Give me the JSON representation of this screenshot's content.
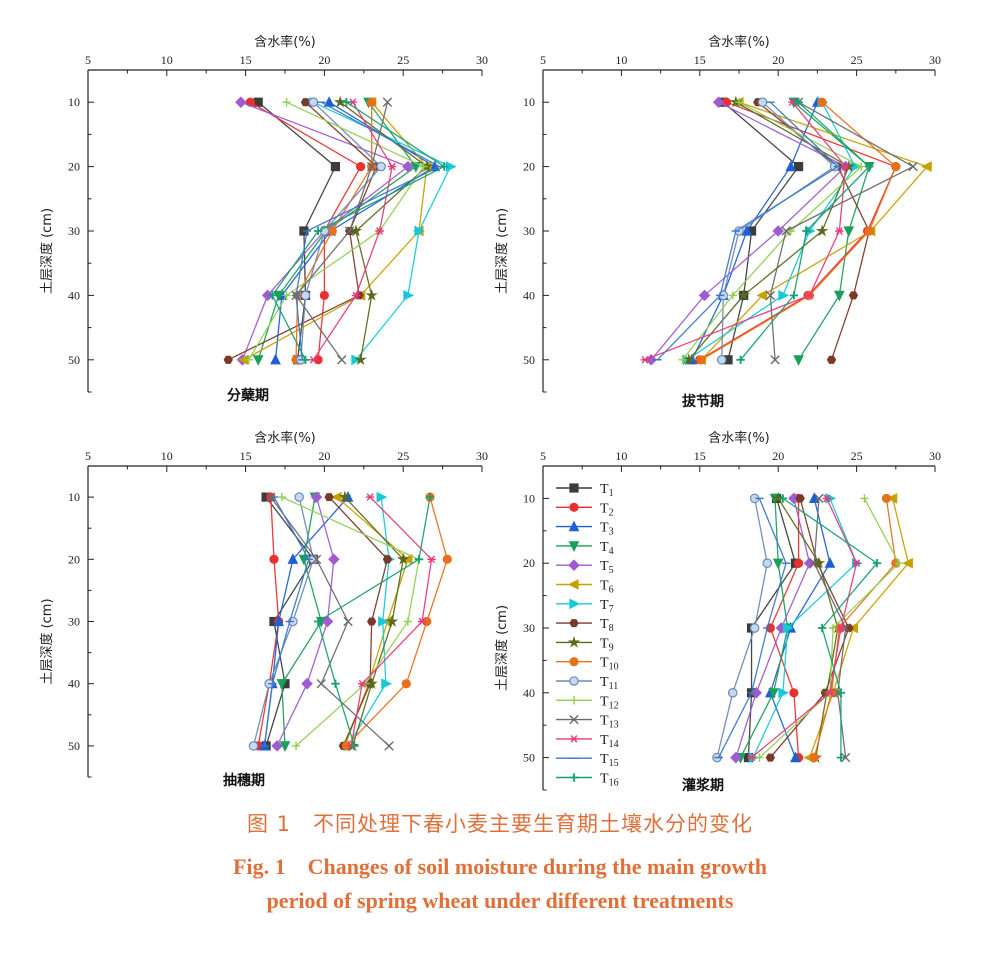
{
  "figure": {
    "xlabel": "含水率(%)",
    "ylabel": "土层深度 (cm)",
    "legend_entries": [
      "T1",
      "T2",
      "T3",
      "T4",
      "T5",
      "T6",
      "T7",
      "T8",
      "T9",
      "T10",
      "T11",
      "T12",
      "T13",
      "T14",
      "T15",
      "T16"
    ]
  },
  "caption": {
    "cn": "图 1　不同处理下春小麦主要生育期土壤水分的变化",
    "en_line1": "Fig. 1　Changes of soil moisture during the main growth",
    "en_line2": "period of spring wheat under different treatments"
  },
  "series_styles": [
    {
      "name": "T1",
      "color": "#3c3c3c",
      "marker": "square"
    },
    {
      "name": "T2",
      "color": "#e8312f",
      "marker": "circle"
    },
    {
      "name": "T3",
      "color": "#1f5fd6",
      "marker": "triangle-up"
    },
    {
      "name": "T4",
      "color": "#19a05a",
      "marker": "triangle-down"
    },
    {
      "name": "T5",
      "color": "#a05ad2",
      "marker": "diamond"
    },
    {
      "name": "T6",
      "color": "#c8a000",
      "marker": "triangle-left"
    },
    {
      "name": "T7",
      "color": "#18c8d8",
      "marker": "triangle-right"
    },
    {
      "name": "T8",
      "color": "#7a3a2a",
      "marker": "hexagon"
    },
    {
      "name": "T9",
      "color": "#5a6a1a",
      "marker": "star"
    },
    {
      "name": "T10",
      "color": "#e8701a",
      "marker": "circle"
    },
    {
      "name": "T11",
      "color": "#6a8ab8",
      "marker": "sphere"
    },
    {
      "name": "T12",
      "color": "#90d050",
      "marker": "plus"
    },
    {
      "name": "T13",
      "color": "#6a6a6a",
      "marker": "x"
    },
    {
      "name": "T14",
      "color": "#e83a7a",
      "marker": "asterisk"
    },
    {
      "name": "T15",
      "color": "#3a78c8",
      "marker": "dash"
    },
    {
      "name": "T16",
      "color": "#18a070",
      "marker": "cross"
    }
  ],
  "chart_data": [
    {
      "type": "line",
      "panel_label": "分蘖期",
      "xlabel": "含水率(%)",
      "ylabel": "土层深度 (cm)",
      "xlim": [
        5,
        30
      ],
      "xticks": [
        5,
        10,
        15,
        20,
        25,
        30
      ],
      "ylim": [
        5,
        55
      ],
      "yticks": [
        10,
        20,
        30,
        40,
        50
      ],
      "y": [
        10,
        20,
        30,
        40,
        50
      ],
      "series": [
        {
          "name": "T1",
          "values": [
            15.8,
            20.7,
            18.7,
            18.8,
            18.3
          ]
        },
        {
          "name": "T2",
          "values": [
            15.3,
            22.3,
            20.0,
            20.0,
            19.6
          ]
        },
        {
          "name": "T3",
          "values": [
            20.3,
            27.0,
            20.4,
            17.3,
            16.9
          ]
        },
        {
          "name": "T4",
          "values": [
            22.8,
            25.8,
            20.1,
            17.1,
            15.8
          ]
        },
        {
          "name": "T5",
          "values": [
            14.7,
            25.3,
            20.0,
            16.4,
            14.8
          ]
        },
        {
          "name": "T6",
          "values": [
            23.0,
            26.5,
            26.0,
            22.3,
            14.9
          ]
        },
        {
          "name": "T7",
          "values": [
            19.3,
            28.0,
            26.0,
            25.3,
            22.0
          ]
        },
        {
          "name": "T8",
          "values": [
            18.8,
            23.3,
            21.6,
            22.2,
            13.9
          ]
        },
        {
          "name": "T9",
          "values": [
            21.0,
            26.5,
            22.0,
            23.0,
            22.3
          ]
        },
        {
          "name": "T10",
          "values": [
            23.0,
            23.0,
            20.5,
            18.3,
            18.2
          ]
        },
        {
          "name": "T11",
          "values": [
            19.3,
            23.6,
            20.0,
            18.8,
            18.5
          ]
        },
        {
          "name": "T12",
          "values": [
            17.6,
            26.3,
            23.5,
            17.6,
            15.2
          ]
        },
        {
          "name": "T13",
          "values": [
            24.0,
            23.0,
            21.6,
            18.2,
            21.1
          ]
        },
        {
          "name": "T14",
          "values": [
            21.8,
            24.3,
            23.5,
            22.0,
            19.3
          ]
        },
        {
          "name": "T15",
          "values": [
            19.8,
            27.3,
            18.9,
            18.2,
            18.6
          ]
        },
        {
          "name": "T16",
          "values": [
            21.4,
            27.6,
            19.6,
            16.7,
            18.8
          ]
        }
      ]
    },
    {
      "type": "line",
      "panel_label": "拔节期",
      "xlabel": "含水率(%)",
      "ylabel": "土层深度 (cm)",
      "xlim": [
        5,
        30
      ],
      "xticks": [
        5,
        10,
        15,
        20,
        25,
        30
      ],
      "ylim": [
        5,
        55
      ],
      "yticks": [
        10,
        20,
        30,
        40,
        50
      ],
      "y": [
        10,
        20,
        30,
        40,
        50
      ],
      "series": [
        {
          "name": "T1",
          "values": [
            16.5,
            21.3,
            18.3,
            17.8,
            16.8
          ]
        },
        {
          "name": "T2",
          "values": [
            16.7,
            27.5,
            25.7,
            21.9,
            15.0
          ]
        },
        {
          "name": "T3",
          "values": [
            22.5,
            20.8,
            18.0,
            16.5,
            14.5
          ]
        },
        {
          "name": "T4",
          "values": [
            21.0,
            25.8,
            24.5,
            23.9,
            21.3
          ]
        },
        {
          "name": "T5",
          "values": [
            16.2,
            24.3,
            20.0,
            15.3,
            11.9
          ]
        },
        {
          "name": "T6",
          "values": [
            17.5,
            29.5,
            25.9,
            19.0,
            15.1
          ]
        },
        {
          "name": "T7",
          "values": [
            22.8,
            24.9,
            22.0,
            20.3,
            14.2
          ]
        },
        {
          "name": "T8",
          "values": [
            18.7,
            23.8,
            25.8,
            24.8,
            23.4
          ]
        },
        {
          "name": "T9",
          "values": [
            17.3,
            24.5,
            22.8,
            17.8,
            14.3
          ]
        },
        {
          "name": "T10",
          "values": [
            22.8,
            27.5,
            25.8,
            22.0,
            15.1
          ]
        },
        {
          "name": "T11",
          "values": [
            19.0,
            23.6,
            17.5,
            16.5,
            16.4
          ]
        },
        {
          "name": "T12",
          "values": [
            17.5,
            25.3,
            20.8,
            17.1,
            13.9
          ]
        },
        {
          "name": "T13",
          "values": [
            21.3,
            28.6,
            20.5,
            19.5,
            19.8
          ]
        },
        {
          "name": "T14",
          "values": [
            20.9,
            24.3,
            23.9,
            22.0,
            11.5
          ]
        },
        {
          "name": "T15",
          "values": [
            19.5,
            23.8,
            17.3,
            16.3,
            12.3
          ]
        },
        {
          "name": "T16",
          "values": [
            21.3,
            25.8,
            21.8,
            21.0,
            17.6
          ]
        }
      ]
    },
    {
      "type": "line",
      "panel_label": "抽穗期",
      "xlabel": "含水率(%)",
      "ylabel": "土层深度 (cm)",
      "xlim": [
        5,
        30
      ],
      "xticks": [
        5,
        10,
        15,
        20,
        25,
        30
      ],
      "ylim": [
        5,
        55
      ],
      "yticks": [
        10,
        20,
        30,
        40,
        50
      ],
      "y": [
        10,
        20,
        30,
        40,
        50
      ],
      "series": [
        {
          "name": "T1",
          "values": [
            16.3,
            19.3,
            16.8,
            17.5,
            16.3
          ]
        },
        {
          "name": "T2",
          "values": [
            16.6,
            16.8,
            17.1,
            16.5,
            15.8
          ]
        },
        {
          "name": "T3",
          "values": [
            21.5,
            18.0,
            17.1,
            16.7,
            16.2
          ]
        },
        {
          "name": "T4",
          "values": [
            19.4,
            18.7,
            19.8,
            17.3,
            17.5
          ]
        },
        {
          "name": "T5",
          "values": [
            19.5,
            20.6,
            20.2,
            18.9,
            17.0
          ]
        },
        {
          "name": "T6",
          "values": [
            20.8,
            25.3,
            24.0,
            22.8,
            21.3
          ]
        },
        {
          "name": "T7",
          "values": [
            23.6,
            24.1,
            23.7,
            23.9,
            21.5
          ]
        },
        {
          "name": "T8",
          "values": [
            20.3,
            24.0,
            23.0,
            22.9,
            21.2
          ]
        },
        {
          "name": "T9",
          "values": [
            21.3,
            25.0,
            24.3,
            23.0,
            21.8
          ]
        },
        {
          "name": "T10",
          "values": [
            26.7,
            27.8,
            26.5,
            25.2,
            21.4
          ]
        },
        {
          "name": "T11",
          "values": [
            18.4,
            19.3,
            18.0,
            16.5,
            15.5
          ]
        },
        {
          "name": "T12",
          "values": [
            17.3,
            26.0,
            25.3,
            22.6,
            18.2
          ]
        },
        {
          "name": "T13",
          "values": [
            16.6,
            19.5,
            21.5,
            19.8,
            24.1
          ]
        },
        {
          "name": "T14",
          "values": [
            22.9,
            26.8,
            26.2,
            22.4,
            21.7
          ]
        },
        {
          "name": "T15",
          "values": [
            16.8,
            19.0,
            17.8,
            16.7,
            16.2
          ]
        },
        {
          "name": "T16",
          "values": [
            26.7,
            26.0,
            19.6,
            20.7,
            21.9
          ]
        }
      ]
    },
    {
      "type": "line",
      "panel_label": "灌浆期",
      "xlabel": "含水率(%)",
      "ylabel": "土层深度 (cm)",
      "xlim": [
        5,
        30
      ],
      "xticks": [
        5,
        10,
        15,
        20,
        25,
        30
      ],
      "ylim": [
        5,
        55
      ],
      "yticks": [
        10,
        20,
        30,
        40,
        50
      ],
      "y": [
        10,
        20,
        30,
        40,
        50
      ],
      "series": [
        {
          "name": "T1",
          "values": [
            19.9,
            21.1,
            18.3,
            18.3,
            18.1
          ]
        },
        {
          "name": "T2",
          "values": [
            21.3,
            21.3,
            19.5,
            21.0,
            21.3
          ]
        },
        {
          "name": "T3",
          "values": [
            22.3,
            23.3,
            20.8,
            19.5,
            21.1
          ]
        },
        {
          "name": "T4",
          "values": [
            19.8,
            20.0,
            20.6,
            19.7,
            17.6
          ]
        },
        {
          "name": "T5",
          "values": [
            21.0,
            22.0,
            20.2,
            18.6,
            17.3
          ]
        },
        {
          "name": "T6",
          "values": [
            27.3,
            28.3,
            24.8,
            23.5,
            22.0
          ]
        },
        {
          "name": "T7",
          "values": [
            23.3,
            25.0,
            20.6,
            20.3,
            18.4
          ]
        },
        {
          "name": "T8",
          "values": [
            21.4,
            22.5,
            24.5,
            23.0,
            19.5
          ]
        },
        {
          "name": "T9",
          "values": [
            20.0,
            22.6,
            23.8,
            23.1,
            22.4
          ]
        },
        {
          "name": "T10",
          "values": [
            26.9,
            27.5,
            23.9,
            23.4,
            22.3
          ]
        },
        {
          "name": "T11",
          "values": [
            18.5,
            19.3,
            18.5,
            17.1,
            16.1
          ]
        },
        {
          "name": "T12",
          "values": [
            25.5,
            27.7,
            23.5,
            23.3,
            18.8
          ]
        },
        {
          "name": "T13",
          "values": [
            22.6,
            22.3,
            24.3,
            23.8,
            24.3
          ]
        },
        {
          "name": "T14",
          "values": [
            23.1,
            25.0,
            24.0,
            23.3,
            18.3
          ]
        },
        {
          "name": "T15",
          "values": [
            18.8,
            20.5,
            19.3,
            18.3,
            16.2
          ]
        },
        {
          "name": "T16",
          "values": [
            20.3,
            26.3,
            22.8,
            24.0,
            24.0
          ]
        }
      ]
    }
  ]
}
